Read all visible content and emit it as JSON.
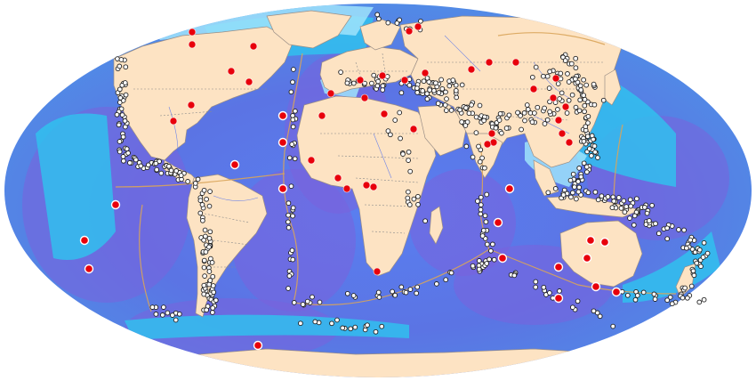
{
  "map": {
    "projection": "mollweide",
    "marker_colors": {
      "seismic_station": "#ffffff",
      "infrasound_station": "#e8000b",
      "ocean_station_ring": "#ffffff"
    },
    "colors": {
      "land": "#fde3c3",
      "deep_ocean": "#6f62d8",
      "mid_ocean": "#3f86e8",
      "shelf": "#2ec4ef",
      "plate_boundary": "#d9a45a"
    }
  }
}
